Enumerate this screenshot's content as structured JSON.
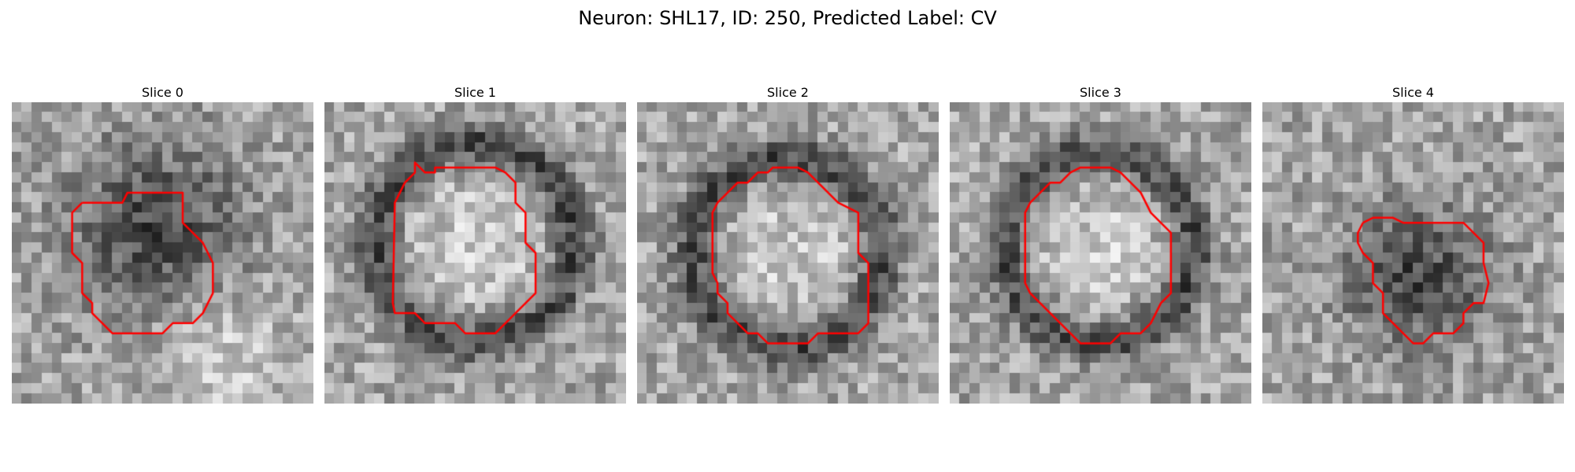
{
  "figure": {
    "title": "Neuron: SHL17, ID: 250, Predicted Label: CV"
  },
  "colors": {
    "contour": "#ff0000",
    "background": "#ffffff",
    "colormap": "gray"
  },
  "panels": [
    {
      "title": "Slice 0",
      "grid_size": 30,
      "feature": "dark",
      "blob": {
        "cx": 14.5,
        "cy": 12.5,
        "r": 8.5
      },
      "bright_patch": {
        "cx": 21,
        "cy": 25,
        "r": 5
      },
      "contour": [
        [
          7,
          10
        ],
        [
          11,
          10
        ],
        [
          11.5,
          9
        ],
        [
          17,
          9
        ],
        [
          17,
          12
        ],
        [
          19,
          14
        ],
        [
          20,
          16
        ],
        [
          20,
          19
        ],
        [
          19,
          21
        ],
        [
          18,
          22
        ],
        [
          16,
          22
        ],
        [
          15,
          23
        ],
        [
          10,
          23
        ],
        [
          9,
          22
        ],
        [
          8,
          21
        ],
        [
          8,
          20
        ],
        [
          7,
          19
        ],
        [
          7,
          16
        ],
        [
          6,
          15
        ],
        [
          6,
          11
        ],
        [
          7,
          10
        ]
      ]
    },
    {
      "title": "Slice 1",
      "grid_size": 30,
      "feature": "ring",
      "blob": {
        "cx": 15,
        "cy": 14,
        "r": 11.5
      },
      "contour": [
        [
          8,
          8
        ],
        [
          9,
          7
        ],
        [
          9,
          6
        ],
        [
          10,
          7
        ],
        [
          11,
          7
        ],
        [
          11,
          6.5
        ],
        [
          17,
          6.5
        ],
        [
          18,
          7
        ],
        [
          19,
          8
        ],
        [
          19,
          10
        ],
        [
          20,
          11
        ],
        [
          20,
          14
        ],
        [
          21,
          15
        ],
        [
          21,
          19
        ],
        [
          20,
          20
        ],
        [
          19,
          21
        ],
        [
          18,
          22
        ],
        [
          17,
          23
        ],
        [
          14,
          23
        ],
        [
          13,
          22
        ],
        [
          10,
          22
        ],
        [
          9,
          21
        ],
        [
          7,
          21
        ],
        [
          6.8,
          20
        ],
        [
          7,
          10
        ],
        [
          8,
          8
        ]
      ]
    },
    {
      "title": "Slice 2",
      "grid_size": 30,
      "feature": "ring",
      "blob": {
        "cx": 15,
        "cy": 15,
        "r": 11
      },
      "contour": [
        [
          8,
          10
        ],
        [
          9,
          9
        ],
        [
          10,
          8
        ],
        [
          11,
          8
        ],
        [
          12,
          7
        ],
        [
          13,
          7
        ],
        [
          13.5,
          6.5
        ],
        [
          16,
          6.5
        ],
        [
          17,
          7
        ],
        [
          18,
          8
        ],
        [
          20,
          10
        ],
        [
          22,
          11
        ],
        [
          22,
          15
        ],
        [
          23,
          16
        ],
        [
          23,
          22
        ],
        [
          22,
          23
        ],
        [
          21,
          23
        ],
        [
          20,
          23
        ],
        [
          18,
          23
        ],
        [
          17,
          24
        ],
        [
          15,
          24
        ],
        [
          14,
          24
        ],
        [
          13,
          24
        ],
        [
          12,
          23
        ],
        [
          11,
          23
        ],
        [
          10,
          22
        ],
        [
          9,
          21
        ],
        [
          9,
          20
        ],
        [
          8,
          19
        ],
        [
          8,
          18
        ],
        [
          7.5,
          17
        ],
        [
          7.5,
          11
        ],
        [
          8,
          10
        ]
      ]
    },
    {
      "title": "Slice 3",
      "grid_size": 30,
      "feature": "ring",
      "blob": {
        "cx": 15,
        "cy": 14.5,
        "r": 11
      },
      "contour": [
        [
          8,
          10
        ],
        [
          9,
          9
        ],
        [
          10,
          8
        ],
        [
          11,
          8
        ],
        [
          12,
          7
        ],
        [
          13,
          6.5
        ],
        [
          16,
          6.5
        ],
        [
          17,
          7
        ],
        [
          19,
          9
        ],
        [
          19.5,
          10
        ],
        [
          20,
          11
        ],
        [
          21,
          12
        ],
        [
          22,
          13
        ],
        [
          22,
          19
        ],
        [
          21,
          20
        ],
        [
          20,
          22
        ],
        [
          19,
          23
        ],
        [
          17,
          23
        ],
        [
          16,
          24
        ],
        [
          14,
          24
        ],
        [
          13,
          24
        ],
        [
          12,
          23
        ],
        [
          11,
          22
        ],
        [
          10,
          21
        ],
        [
          9,
          20
        ],
        [
          8,
          19
        ],
        [
          7.5,
          18
        ],
        [
          7.5,
          11
        ],
        [
          8,
          10
        ]
      ]
    },
    {
      "title": "Slice 4",
      "grid_size": 30,
      "feature": "dark",
      "blob": {
        "cx": 15.5,
        "cy": 17.5,
        "r": 7
      },
      "contour": [
        [
          10,
          12
        ],
        [
          11,
          11.5
        ],
        [
          13,
          11.5
        ],
        [
          14,
          12
        ],
        [
          20,
          12
        ],
        [
          21,
          13
        ],
        [
          22,
          14
        ],
        [
          22,
          16
        ],
        [
          22.5,
          18
        ],
        [
          22,
          20
        ],
        [
          21,
          20
        ],
        [
          20,
          21
        ],
        [
          20,
          22
        ],
        [
          19,
          23
        ],
        [
          18,
          23
        ],
        [
          17,
          23
        ],
        [
          16,
          24
        ],
        [
          15,
          24
        ],
        [
          14,
          23
        ],
        [
          13,
          22
        ],
        [
          12,
          21
        ],
        [
          12,
          19
        ],
        [
          11,
          18
        ],
        [
          11,
          16
        ],
        [
          10,
          15
        ],
        [
          9.5,
          14
        ],
        [
          9.5,
          13
        ],
        [
          10,
          12
        ]
      ]
    }
  ]
}
